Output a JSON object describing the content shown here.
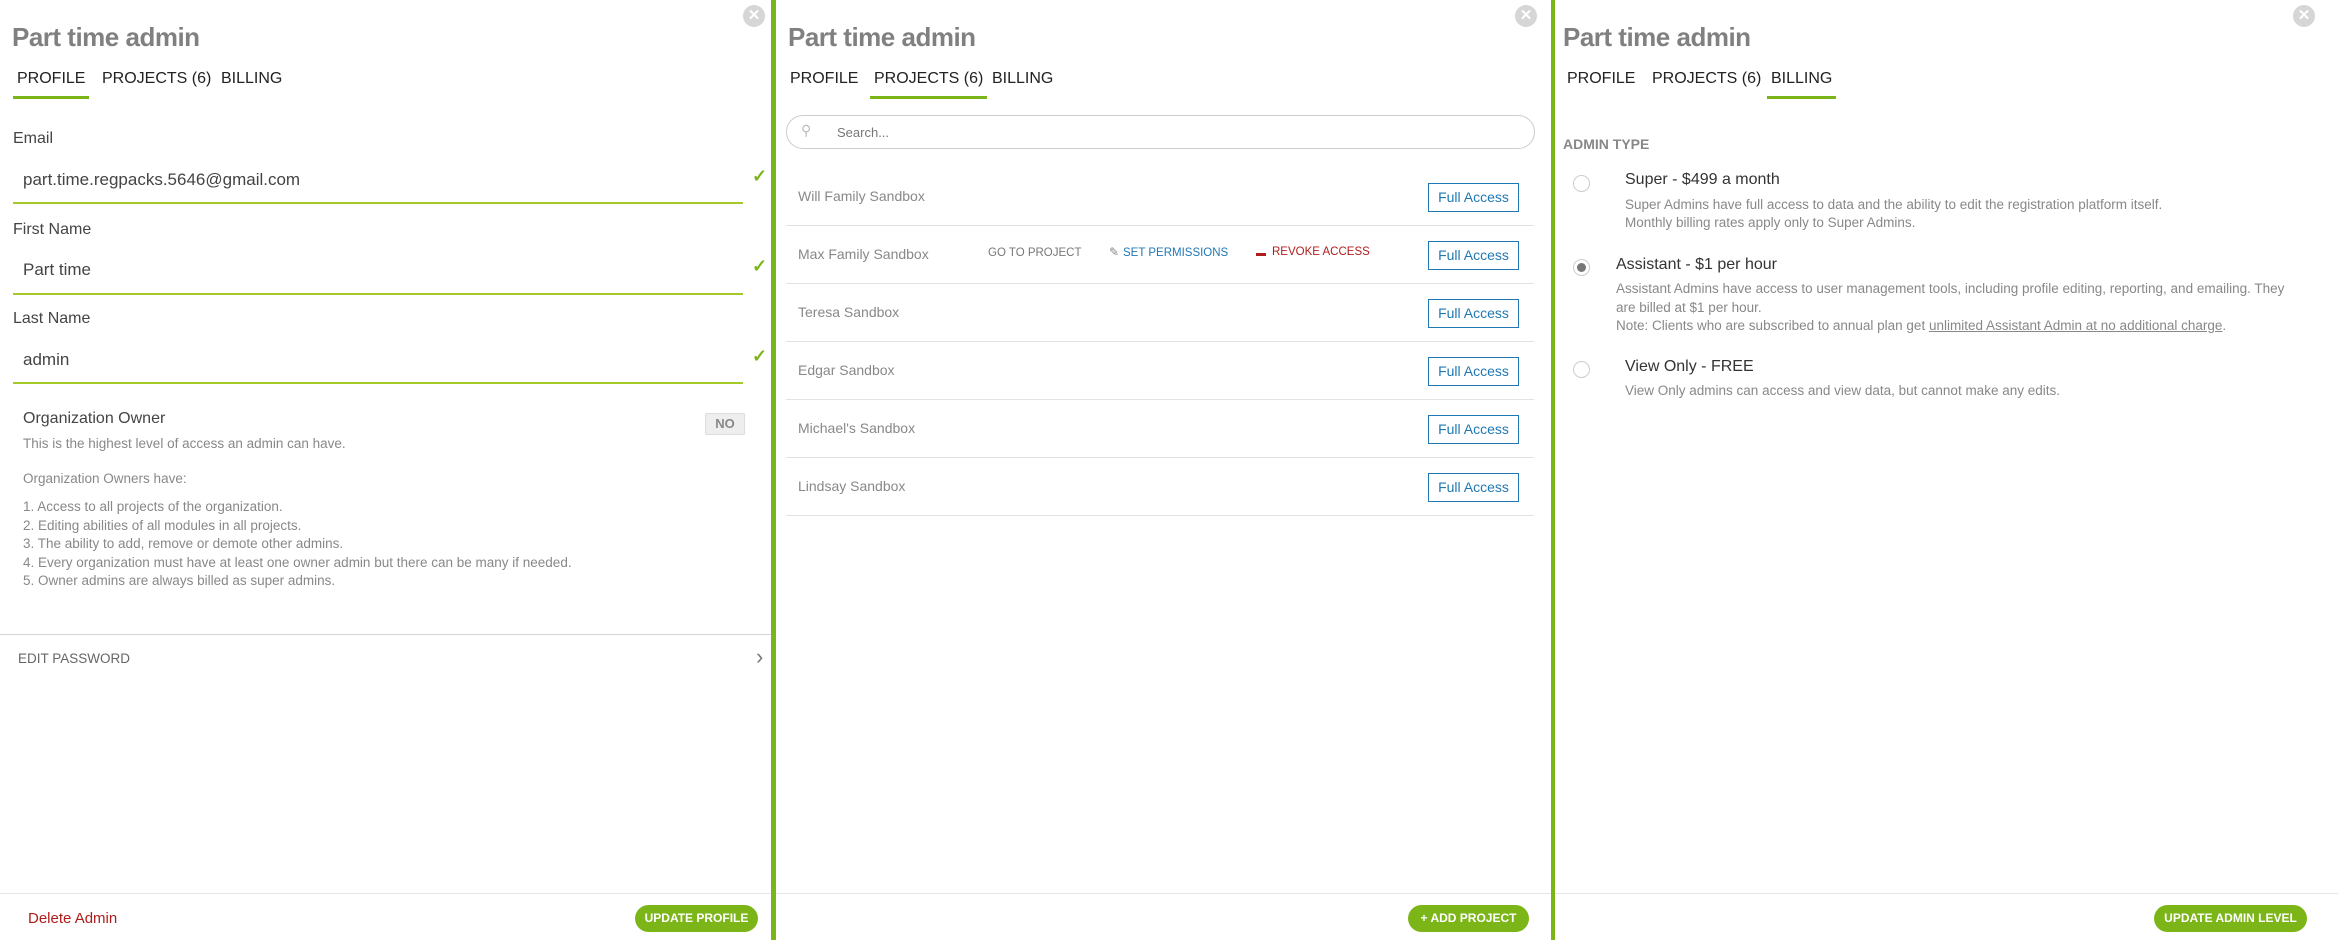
{
  "window_title": "Part time admin",
  "tabs": [
    "PROFILE",
    "PROJECTS (6)",
    "BILLING"
  ],
  "profile": {
    "email_label": "Email",
    "email_value": "part.time.regpacks.5646@gmail.com",
    "first_label": "First Name",
    "first_value": "Part time",
    "last_label": "Last Name",
    "last_value": "admin",
    "owner_title": "Organization Owner",
    "owner_toggle": "NO",
    "owner_desc": "This is the highest level of access an admin can have.",
    "owners_have": "Organization Owners have:",
    "owner_list": [
      "1. Access to all projects of the organization.",
      "2. Editing abilities of all modules in all projects.",
      "3. The ability to add, remove or demote other admins.",
      "4. Every organization must have at least one owner admin but there can be many if needed.",
      "5. Owner admins are always billed as super admins."
    ],
    "edit_password": "EDIT PASSWORD",
    "delete_admin": "Delete Admin",
    "update_profile": "UPDATE PROFILE"
  },
  "projects": {
    "search_placeholder": "Search...",
    "rows": [
      {
        "name": "Will Family Sandbox",
        "access": "Full Access"
      },
      {
        "name": "Max Family Sandbox",
        "access": "Full Access"
      },
      {
        "name": "Teresa Sandbox",
        "access": "Full Access"
      },
      {
        "name": "Edgar Sandbox",
        "access": "Full Access"
      },
      {
        "name": "Michael's Sandbox",
        "access": "Full Access"
      },
      {
        "name": "Lindsay Sandbox",
        "access": "Full Access"
      }
    ],
    "go_to_project": "GO TO PROJECT",
    "set_permissions": "SET PERMISSIONS",
    "revoke_access": "REVOKE ACCESS",
    "add_project": "+ ADD PROJECT"
  },
  "billing": {
    "admin_type_label": "ADMIN TYPE",
    "selected": "Assistant - $1 per hour",
    "options": [
      {
        "title": "Super - $499 a month",
        "desc": [
          "Super Admins have full access to data and the ability to edit the registration platform itself.",
          "Monthly billing rates apply only to Super Admins."
        ]
      },
      {
        "title": "Assistant - $1 per hour",
        "desc": [
          "Assistant Admins have access to user management tools, including profile editing, reporting, and emailing. They",
          "are billed at $1 per hour."
        ],
        "note_prefix": "Note: Clients who are subscribed to annual plan get ",
        "note_link": "unlimited Assistant Admin at no additional charge",
        "note_suffix": "."
      },
      {
        "title": "View Only - FREE",
        "desc": [
          "View Only admins can access and view data, but cannot make any edits."
        ]
      }
    ],
    "update_admin_level": "UPDATE ADMIN LEVEL"
  },
  "colors": {
    "accent": "#7cb518",
    "link_blue": "#1f78b4",
    "danger": "#b01c1c"
  }
}
